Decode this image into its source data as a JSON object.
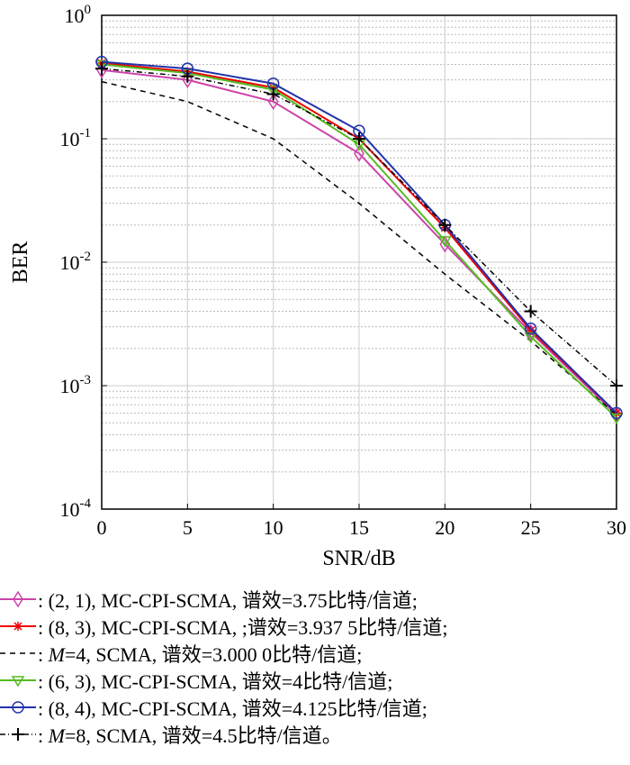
{
  "chart_data": {
    "type": "line",
    "title": "",
    "xlabel": "SNR/dB",
    "ylabel": "BER",
    "xlim": [
      0,
      30
    ],
    "ylim": [
      0.0001,
      1
    ],
    "yscale": "log",
    "grid": true,
    "x": [
      0,
      5,
      10,
      15,
      20,
      25,
      30
    ],
    "xticks": [
      "0",
      "5",
      "10",
      "15",
      "20",
      "25",
      "30"
    ],
    "yticks": [
      {
        "base": "10",
        "exp": "0"
      },
      {
        "base": "10",
        "exp": "-1"
      },
      {
        "base": "10",
        "exp": "-2"
      },
      {
        "base": "10",
        "exp": "-3"
      },
      {
        "base": "10",
        "exp": "-4"
      }
    ],
    "legend_placement": "below",
    "series": [
      {
        "name": ": (2, 1), MC-CPI-SCMA, 谱效=3.75比特/信道;",
        "color": "#cc44aa",
        "marker": "diamond",
        "dash": "solid",
        "values": [
          0.36,
          0.3,
          0.2,
          0.076,
          0.014,
          0.0027,
          0.00058
        ]
      },
      {
        "name": ": (8, 3), MC-CPI-SCMA, ;谱效=3.937 5比特/信道;",
        "color": "#ee0000",
        "marker": "asterisk",
        "dash": "solid",
        "values": [
          0.41,
          0.35,
          0.26,
          0.1,
          0.019,
          0.0028,
          0.0006
        ]
      },
      {
        "name": "=4, SCMA, 谱效=3.000 0比特/信道;",
        "prefix": ": ",
        "italic": "M",
        "color": "#000000",
        "marker": "none",
        "dash": "dashed",
        "values": [
          0.29,
          0.2,
          0.1,
          0.03,
          0.008,
          0.0023,
          0.00058
        ]
      },
      {
        "name": ": (6, 3), MC-CPI-SCMA, 谱效=4比特/信道;",
        "color": "#55bb22",
        "marker": "triangle-down",
        "dash": "solid",
        "values": [
          0.4,
          0.34,
          0.25,
          0.09,
          0.015,
          0.0025,
          0.00055
        ]
      },
      {
        "name": ": (8, 4), MC-CPI-SCMA, 谱效=4.125比特/信道;",
        "color": "#2233aa",
        "marker": "circle",
        "dash": "solid",
        "values": [
          0.42,
          0.37,
          0.28,
          0.116,
          0.02,
          0.0029,
          0.0006
        ]
      },
      {
        "name": "=8, SCMA, 谱效=4.5比特/信道。",
        "prefix": ": ",
        "italic": "M",
        "color": "#000000",
        "marker": "plus",
        "dash": "dashdot",
        "values": [
          0.37,
          0.32,
          0.23,
          0.1,
          0.02,
          0.004,
          0.001
        ]
      }
    ]
  }
}
